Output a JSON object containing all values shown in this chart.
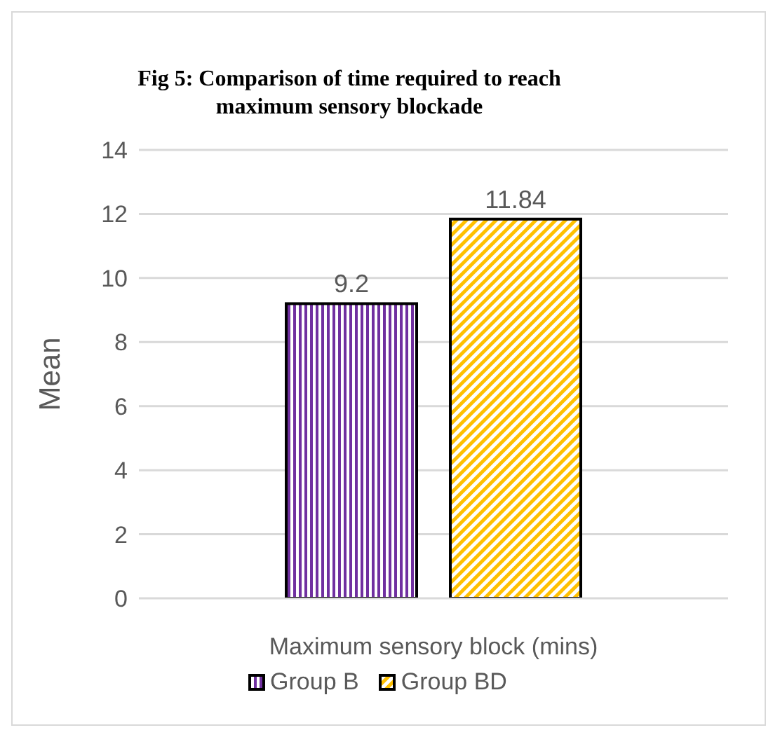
{
  "chart_data": {
    "type": "bar",
    "title": "Fig 5: Comparison of time required to reach maximum sensory blockade",
    "xlabel": "Maximum sensory block (mins)",
    "ylabel": "Mean",
    "categories": [
      null
    ],
    "series": [
      {
        "name": "Group B",
        "color": "#7030a0",
        "values": [
          9.2
        ]
      },
      {
        "name": "Group BD",
        "color": "#ffc000",
        "values": [
          11.84
        ]
      }
    ],
    "ylim": [
      0,
      14
    ],
    "yticks": [
      0,
      2,
      4,
      6,
      8,
      10,
      12,
      14
    ],
    "grid": "y",
    "legend": "bottom",
    "data_labels": true
  }
}
